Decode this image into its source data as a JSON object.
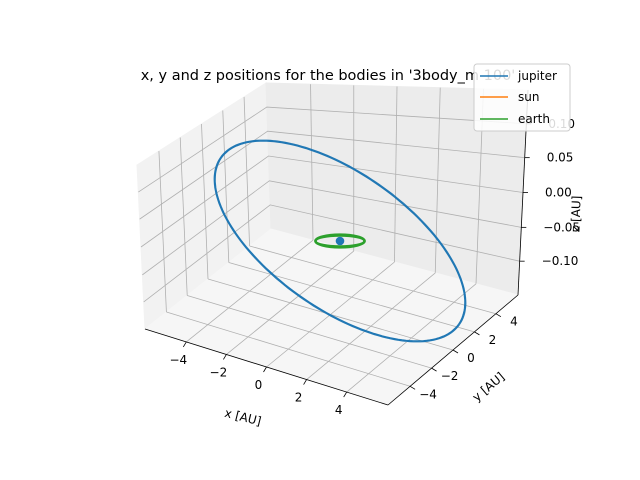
{
  "chart_data": {
    "type": "line",
    "projection": "3d",
    "title": "x, y and z positions for the bodies in '3body_m 100'",
    "xlabel": "x [AU]",
    "ylabel": "y [AU]",
    "zlabel": "z [AU]",
    "x_ticks": [
      "−4",
      "−2",
      "0",
      "2",
      "4"
    ],
    "y_ticks": [
      "−4",
      "−2",
      "0",
      "2",
      "4"
    ],
    "z_ticks": [
      "−0.10",
      "−0.05",
      "0.00",
      "0.05",
      "0.10"
    ],
    "grid": true,
    "legend": "top-right",
    "series": [
      {
        "name": "jupiter",
        "color": "#1f77b4",
        "orbit_radius_au": 5.2,
        "z_amplitude_au": 0.12
      },
      {
        "name": "sun",
        "color": "#ff7f0e",
        "orbit_radius_au": 0.005,
        "z_amplitude_au": 0.0
      },
      {
        "name": "earth",
        "color": "#2ca02c",
        "orbit_radius_au": 1.0,
        "z_amplitude_au": 0.003
      }
    ]
  }
}
